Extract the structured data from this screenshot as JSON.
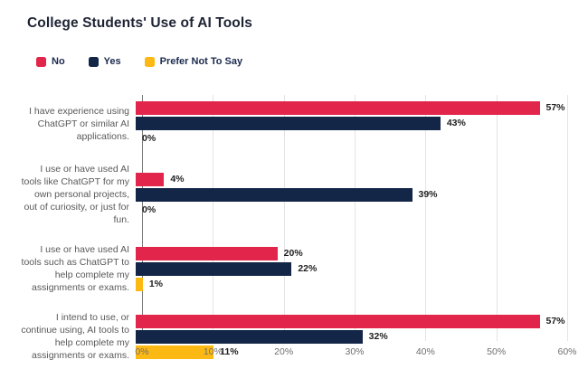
{
  "chart_data": {
    "type": "bar",
    "orientation": "horizontal",
    "title": "College Students' Use of AI Tools",
    "categories": [
      "I have experience using ChatGPT or similar AI applications.",
      "I use or have used AI tools like ChatGPT for my own personal projects, out of curiosity, or just for fun.",
      "I use or have used AI tools such as ChatGPT to help complete my assignments or exams.",
      "I intend to use, or continue using, AI tools to help complete my assignments or exams."
    ],
    "series": [
      {
        "name": "No",
        "color": "#E2254A",
        "values": [
          57,
          4,
          20,
          57
        ],
        "labels": [
          "57%",
          "4%",
          "20%",
          "57%"
        ]
      },
      {
        "name": "Yes",
        "color": "#132648",
        "values": [
          43,
          39,
          22,
          32
        ],
        "labels": [
          "43%",
          "39%",
          "22%",
          "32%"
        ]
      },
      {
        "name": "Prefer Not To Say",
        "color": "#FDB913",
        "values": [
          0,
          0,
          1,
          11
        ],
        "labels": [
          "0%",
          "0%",
          "1%",
          "11%"
        ]
      }
    ],
    "xlim": [
      0,
      60
    ],
    "x_ticks": [
      0,
      10,
      20,
      30,
      40,
      50,
      60
    ],
    "x_tick_labels": [
      "0%",
      "10%",
      "20%",
      "30%",
      "40%",
      "50%",
      "60%"
    ],
    "value_suffix": "%",
    "grid": "vertical gridlines every 10%",
    "legend_position": "top-left"
  }
}
